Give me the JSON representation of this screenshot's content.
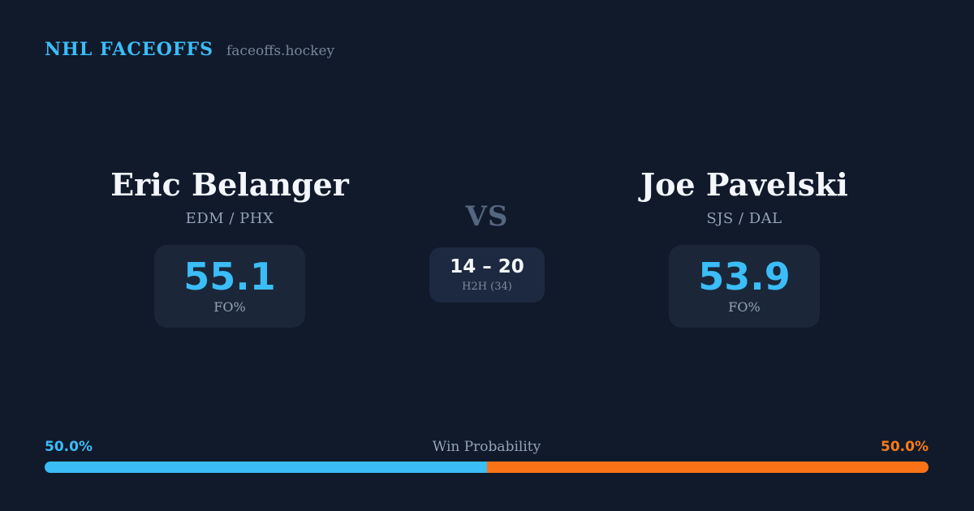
{
  "header": {
    "brand": "NHL FACEOFFS",
    "domain": "faceoffs.hockey"
  },
  "player1": {
    "name": "Eric Belanger",
    "teams": "EDM / PHX",
    "fo_value": "55.1",
    "fo_label": "FO%"
  },
  "player2": {
    "name": "Joe Pavelski",
    "teams": "SJS / DAL",
    "fo_value": "53.9",
    "fo_label": "FO%"
  },
  "versus": {
    "vs_label": "VS",
    "h2h_score": "14 – 20",
    "h2h_label": "H2H (34)"
  },
  "win_probability": {
    "title": "Win Probability",
    "left_label": "50.0%",
    "right_label": "50.0%",
    "left_value": 50.0,
    "right_value": 50.0,
    "left_color": "#3bbdf8",
    "right_color": "#f97316"
  },
  "colors": {
    "background": "#101a2b",
    "card": "#1b2738",
    "accent_blue": "#3bbdf8",
    "accent_orange": "#f97316",
    "text_primary": "#f3f6fa",
    "text_muted": "#94a3b8"
  }
}
